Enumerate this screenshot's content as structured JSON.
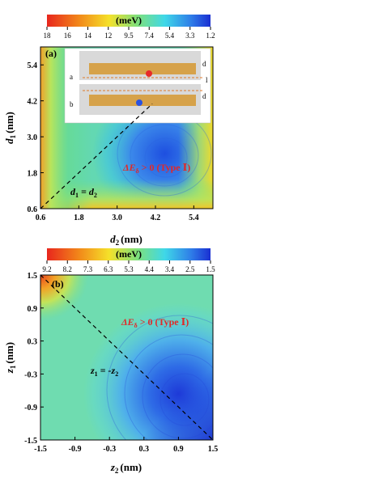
{
  "chart_data": [
    {
      "type": "heatmap",
      "panel": "(a)",
      "colorbar": {
        "label": "(meV)",
        "ticks": [
          "18",
          "16",
          "14",
          "12",
          "9.5",
          "7.4",
          "5.4",
          "3.3",
          "1.2"
        ],
        "range": [
          18,
          1.2
        ]
      },
      "xlabel_var": "d",
      "xlabel_sub": "2",
      "xlabel_unit": "(nm)",
      "ylabel_var": "d",
      "ylabel_sub": "1",
      "ylabel_unit": "(nm)",
      "xticks": [
        "0.6",
        "1.8",
        "3.0",
        "4.2",
        "5.4"
      ],
      "yticks": [
        "0.6",
        "1.8",
        "3.0",
        "4.2",
        "5.4"
      ],
      "xlim": [
        0.6,
        6.0
      ],
      "ylim": [
        0.6,
        6.0
      ],
      "annotation": "ΔE",
      "annotation_sub": "δ",
      "annotation_rest": " > 0 (Type Ⅰ)",
      "line_label": "d",
      "line_label_sub1": "1",
      "line_label_mid": " = d",
      "line_label_sub2": "2",
      "inset_labels": [
        "d",
        "d",
        "l",
        "a",
        "b"
      ],
      "diagonal": {
        "from": [
          0.6,
          0.6
        ],
        "to": [
          4.1,
          4.1
        ]
      },
      "minimum": {
        "x": 4.2,
        "y": 2.4
      }
    },
    {
      "type": "heatmap",
      "panel": "(b)",
      "colorbar": {
        "label": "(meV)",
        "ticks": [
          "9.2",
          "8.2",
          "7.3",
          "6.3",
          "5.3",
          "4.4",
          "3.4",
          "2.5",
          "1.5"
        ],
        "range": [
          9.2,
          1.5
        ]
      },
      "xlabel_var": "z",
      "xlabel_sub": "2",
      "xlabel_unit": "(nm)",
      "ylabel_var": "z",
      "ylabel_sub": "1",
      "ylabel_unit": "(nm)",
      "xticks": [
        "-1.5",
        "-0.9",
        "-0.3",
        "0.3",
        "0.9",
        "1.5"
      ],
      "yticks": [
        "-1.5",
        "-0.9",
        "-0.3",
        "0.3",
        "0.9",
        "1.5"
      ],
      "xlim": [
        -1.5,
        1.5
      ],
      "ylim": [
        -1.5,
        1.5
      ],
      "annotation": "ΔE",
      "annotation_sub": "δ",
      "annotation_rest": " > 0 (Type Ⅰ)",
      "line_label": "z",
      "line_label_sub1": "1",
      "line_label_mid": " = -z",
      "line_label_sub2": "2",
      "diagonal": {
        "from": [
          -1.5,
          1.5
        ],
        "to": [
          1.5,
          -1.5
        ]
      },
      "minimum": {
        "x": 0.9,
        "y": -0.9
      }
    }
  ]
}
